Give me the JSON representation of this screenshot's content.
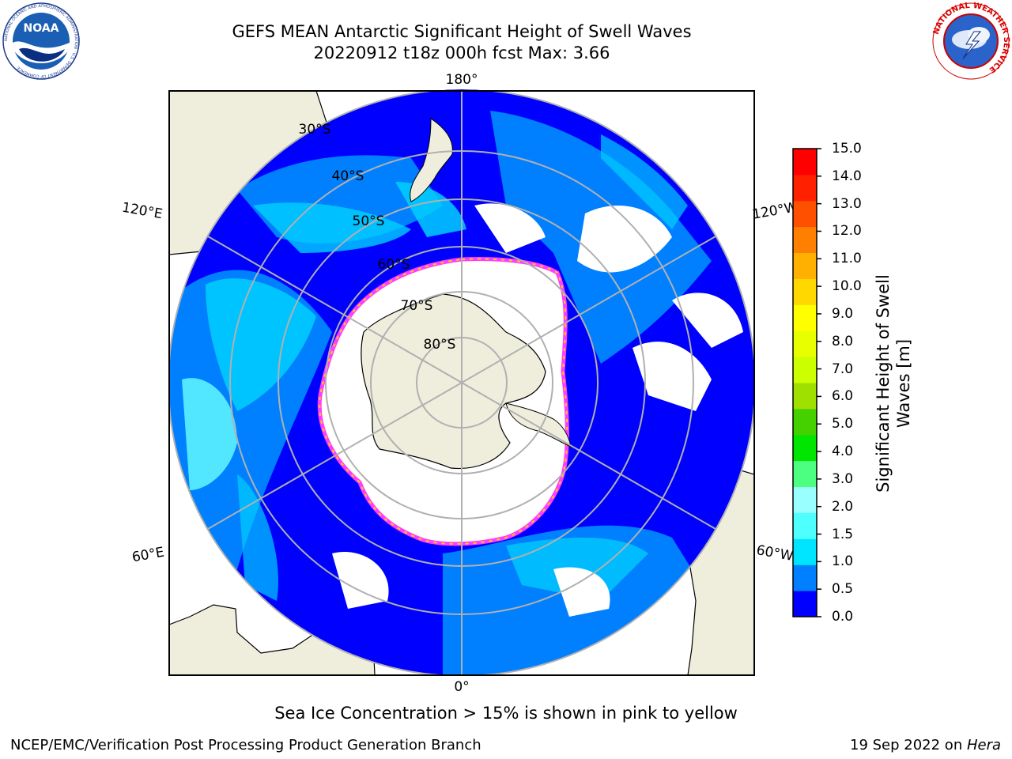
{
  "header": {
    "title_line1": "GEFS MEAN Antarctic Significant Height of Swell Waves",
    "title_line2": "20220912 t18z 000h fcst   Max: 3.66"
  },
  "logos": {
    "left": {
      "icon": "noaa-logo-icon",
      "text": "NOAA",
      "ring_text": "NATIONAL OCEANIC AND ATMOSPHERIC ADMINISTRATION · U.S. DEPARTMENT OF COMMERCE"
    },
    "right": {
      "icon": "national-weather-service-logo-icon",
      "ring_text": "NATIONAL WEATHER SERVICE"
    }
  },
  "map": {
    "projection": "south-polar-stereographic",
    "longitude_labels": [
      "180°",
      "120°E",
      "120°W",
      "60°E",
      "60°W",
      "0°"
    ],
    "latitude_labels": [
      "30°S",
      "40°S",
      "50°S",
      "60°S",
      "70°S",
      "80°S"
    ],
    "colors": {
      "land": "#efeedd",
      "ocean_calm": "#0000ff",
      "ocean_low": "#0080ff",
      "ocean_mid": "#00d0ff",
      "ocean_high": "#66ffff",
      "sea_ice_edge": [
        "#ff3cff",
        "#ffb000",
        "#ffe000"
      ],
      "grid": "#b0b0b0"
    }
  },
  "colorbar": {
    "label": "Significant Height of Swell Waves [m]",
    "ticks": [
      "15.0",
      "14.0",
      "13.0",
      "12.0",
      "11.0",
      "10.0",
      "9.0",
      "8.0",
      "7.0",
      "6.0",
      "5.0",
      "4.0",
      "3.0",
      "2.0",
      "1.5",
      "1.0",
      "0.5",
      "0.0"
    ],
    "colors_bottom_to_top": [
      "#0000ff",
      "#0080ff",
      "#00e5ff",
      "#4dffff",
      "#99ffff",
      "#4cff80",
      "#00e600",
      "#45d000",
      "#a0e000",
      "#ccff00",
      "#e8ff00",
      "#ffff00",
      "#ffd800",
      "#ffb000",
      "#ff8000",
      "#ff5000",
      "#ff2000",
      "#ff0000"
    ]
  },
  "subtitle": "Sea Ice Concentration > 15% is shown in pink to yellow",
  "footer": {
    "left": "NCEP/EMC/Verification Post Processing Product Generation Branch",
    "right_prefix": "19 Sep 2022 on ",
    "right_italic": "Hera"
  }
}
